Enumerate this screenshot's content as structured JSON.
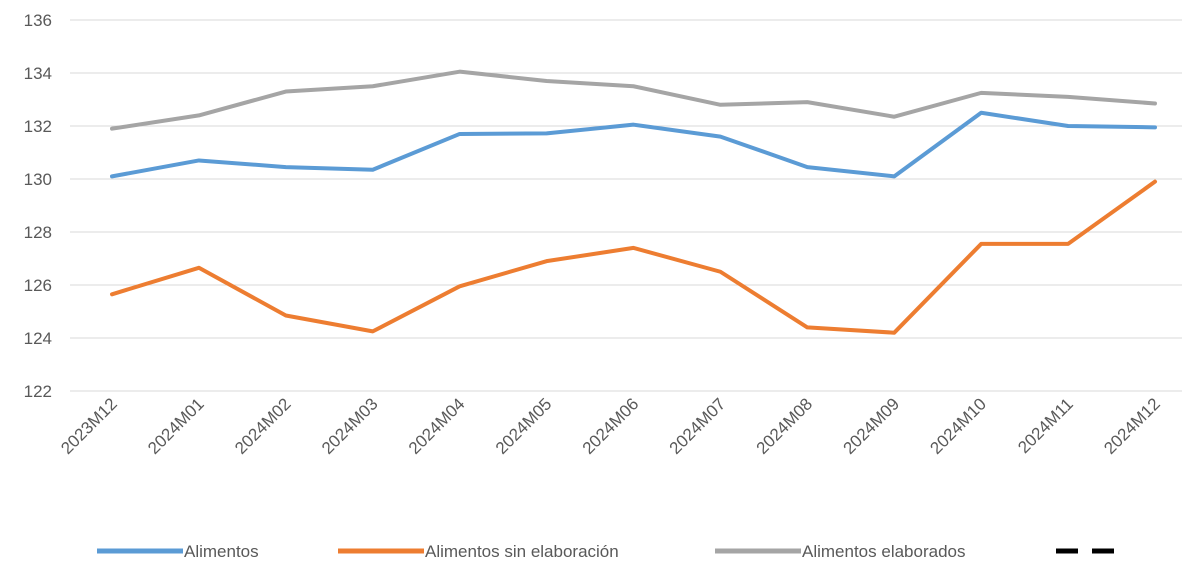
{
  "chart_data": {
    "type": "line",
    "categories": [
      "2023M12",
      "2024M01",
      "2024M02",
      "2024M03",
      "2024M04",
      "2024M05",
      "2024M06",
      "2024M07",
      "2024M08",
      "2024M09",
      "2024M10",
      "2024M11",
      "2024M12"
    ],
    "series": [
      {
        "name": "Alimentos",
        "color": "#5b9bd5",
        "values": [
          130.1,
          130.7,
          130.45,
          130.35,
          131.7,
          131.72,
          132.05,
          131.6,
          130.45,
          130.1,
          132.5,
          132.0,
          131.95
        ]
      },
      {
        "name": "Alimentos sin elaboración",
        "color": "#ed7d31",
        "values": [
          125.65,
          126.65,
          124.85,
          124.25,
          125.95,
          126.9,
          127.4,
          126.5,
          124.4,
          124.2,
          127.55,
          127.55,
          129.9
        ]
      },
      {
        "name": "Alimentos elaborados",
        "color": "#a5a5a5",
        "values": [
          131.9,
          132.4,
          133.3,
          133.5,
          134.05,
          133.7,
          133.5,
          132.8,
          132.9,
          132.35,
          133.25,
          133.1,
          132.85
        ]
      }
    ],
    "ylim": [
      122,
      136
    ],
    "yticks": [
      122,
      124,
      126,
      128,
      130,
      132,
      134,
      136
    ],
    "grid": true
  }
}
